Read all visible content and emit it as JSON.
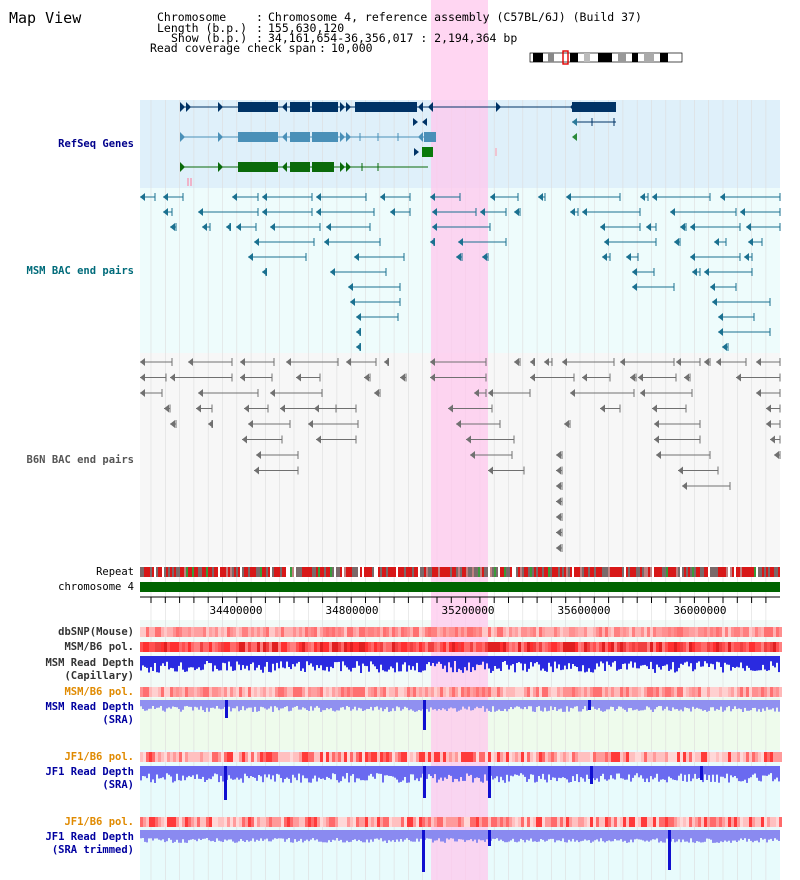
{
  "app_title": "Map View",
  "header": {
    "chromosome_key": "Chromosome",
    "chromosome_value": "Chromosome 4, reference assembly (C57BL/6J) (Build 37)",
    "length_key": "Length (b.p.)",
    "length_value": "155,630,120",
    "show_key": "Show (b.p.)",
    "show_value": "34,161,654-36,356,017 : 2,194,364 bp",
    "coverage_key": "Read coverage check span",
    "coverage_value": "10,000"
  },
  "tracks": {
    "refseq": "RefSeq Genes",
    "msm_bac": "MSM BAC end pairs",
    "b6n_bac": "B6N BAC end pairs",
    "repeat": "Repeat",
    "chromosome": "chromosome 4",
    "dbsnp": "dbSNP(Mouse)",
    "msm_b6_pol_1": "MSM/B6 pol.",
    "msm_read_depth_cap": "MSM Read Depth\n(Capillary)",
    "msm_b6_pol_2": "MSM/B6 pol.",
    "msm_read_depth_sra": "MSM Read Depth\n(SRA)",
    "jf1_b6_pol_1": "JF1/B6 pol.",
    "jf1_read_depth_sra": "JF1 Read Depth\n(SRA)",
    "jf1_b6_pol_2": "JF1/B6 pol.",
    "jf1_read_depth_trim": "JF1 Read Depth\n(SRA trimmed)"
  },
  "axis": {
    "ticks": [
      "34400000",
      "34800000",
      "35200000",
      "35600000",
      "36000000"
    ]
  },
  "colors": {
    "refseq_label": "#00008b",
    "msm_label": "#006b7a",
    "b6n_label": "#555555",
    "orange_label": "#e08a00",
    "blue_label": "#0000a0",
    "highlight": "#ffc8ee",
    "chromosome_bar": "#006400"
  }
}
